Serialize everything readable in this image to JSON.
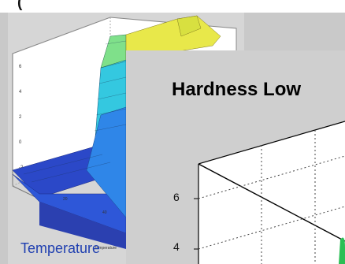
{
  "top_fragment": "(",
  "back_plot": {
    "caption": "Temperature",
    "colors": [
      "#2b48c8",
      "#2f86e8",
      "#34c8e0",
      "#55e0a8",
      "#a8e85a",
      "#e8e84a"
    ]
  },
  "front_plot": {
    "title": "Hardness Low",
    "y_ticks": [
      "6",
      "4"
    ]
  }
}
